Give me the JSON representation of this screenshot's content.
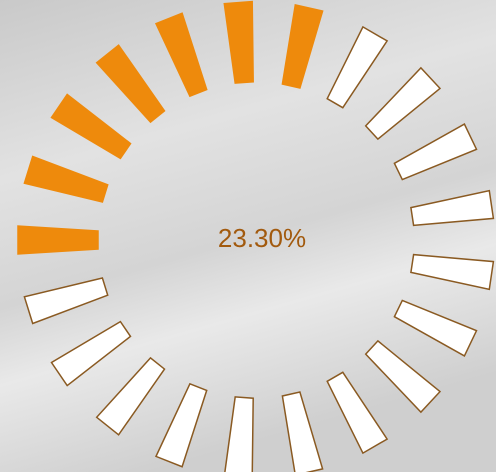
{
  "progress_label": "23.30%"
}
